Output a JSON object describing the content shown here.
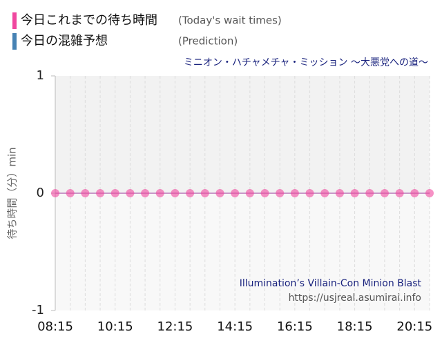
{
  "chart_data": {
    "type": "line",
    "subtitle": "ミニオン・ハチャメチャ・ミッション ～大悪党への道～",
    "y_label": "待ち時間（分）min",
    "annotations": [
      "Illumination’s Villain-Con Minion Blast",
      "https://usjreal.asumirai.info"
    ],
    "x": [
      "08:15",
      "08:45",
      "09:15",
      "09:45",
      "10:15",
      "10:45",
      "11:15",
      "11:45",
      "12:15",
      "12:45",
      "13:15",
      "13:45",
      "14:15",
      "14:45",
      "15:15",
      "15:45",
      "16:15",
      "16:45",
      "17:15",
      "17:45",
      "18:15",
      "18:45",
      "19:15",
      "19:45",
      "20:15",
      "20:45"
    ],
    "xlim": [
      "08:15",
      "20:45"
    ],
    "xticks": [
      "08:15",
      "10:15",
      "12:15",
      "14:15",
      "16:15",
      "18:15",
      "20:15"
    ],
    "ylim": [
      -1,
      1
    ],
    "yticks": [
      -1,
      0,
      1
    ],
    "series": [
      {
        "name": "今日これまでの待ち時間",
        "label_en": "(Today's wait times)",
        "color": "#f0479f",
        "values": [
          0,
          0,
          0,
          0,
          0,
          0,
          0,
          0,
          0,
          0,
          0,
          0,
          0,
          0,
          0,
          0,
          0,
          0,
          0,
          0,
          0,
          0,
          0,
          0,
          0,
          0
        ]
      },
      {
        "name": "今日の混雑予想",
        "label_en": "(Prediction)",
        "color": "#4682b4",
        "values": [
          null,
          null,
          null,
          null,
          null,
          null,
          null,
          null,
          null,
          null,
          null,
          null,
          null,
          null,
          null,
          null,
          null,
          null,
          null,
          null,
          null,
          null,
          null,
          null,
          null,
          null
        ]
      }
    ]
  }
}
